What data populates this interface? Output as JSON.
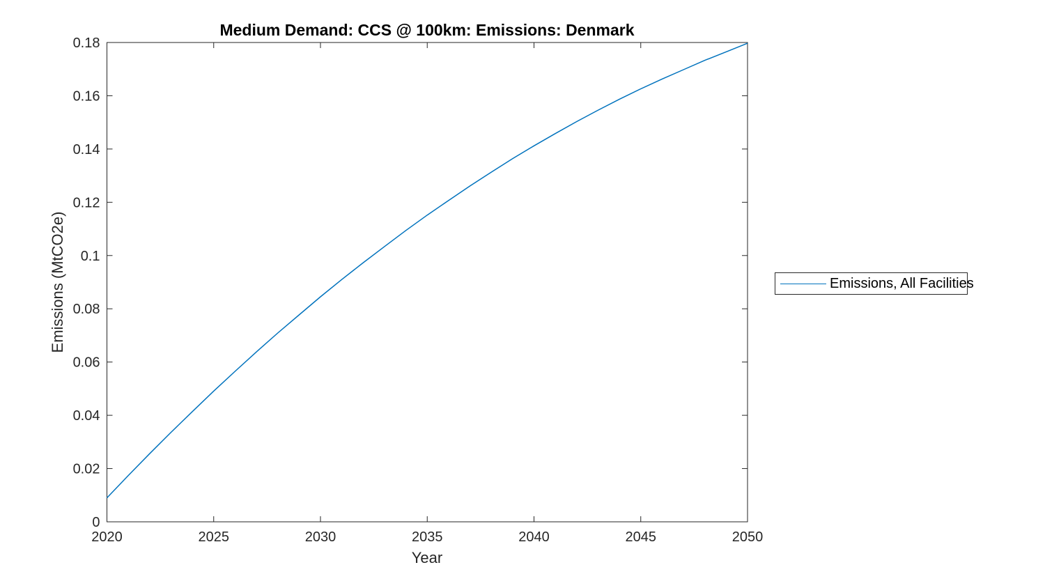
{
  "figure": {
    "title": "Medium Demand: CCS @ 100km: Emissions: Denmark",
    "xlabel": "Year",
    "ylabel": "Emissions (MtCO2e)"
  },
  "legend": {
    "entries": [
      {
        "label": "Emissions, All Facilities",
        "color": "#0072BD"
      }
    ]
  },
  "colors": {
    "line": "#0072BD",
    "axis": "#262626",
    "title": "#000000",
    "background": "#ffffff"
  },
  "chart_data": {
    "type": "line",
    "title": "Medium Demand: CCS @ 100km: Emissions: Denmark",
    "xlabel": "Year",
    "ylabel": "Emissions (MtCO2e)",
    "xlim": [
      2020,
      2050
    ],
    "ylim": [
      0,
      0.18
    ],
    "x_tick_labels": [
      "2020",
      "2025",
      "2030",
      "2035",
      "2040",
      "2045",
      "2050"
    ],
    "x_tick_values": [
      2020,
      2025,
      2030,
      2035,
      2040,
      2045,
      2050
    ],
    "y_tick_labels": [
      "0",
      "0.02",
      "0.04",
      "0.06",
      "0.08",
      "0.1",
      "0.12",
      "0.14",
      "0.16",
      "0.18"
    ],
    "y_tick_values": [
      0,
      0.02,
      0.04,
      0.06,
      0.08,
      0.1,
      0.12,
      0.14,
      0.16,
      0.18
    ],
    "grid": false,
    "box": true,
    "legend_position": "outside-right",
    "series": [
      {
        "name": "Emissions, All Facilities",
        "color": "#0072BD",
        "x": [
          2020,
          2021,
          2022,
          2023,
          2024,
          2025,
          2026,
          2027,
          2028,
          2029,
          2030,
          2031,
          2032,
          2033,
          2034,
          2035,
          2036,
          2037,
          2038,
          2039,
          2040,
          2041,
          2042,
          2043,
          2044,
          2045,
          2046,
          2047,
          2048,
          2049,
          2050
        ],
        "y": [
          0.009,
          0.0174,
          0.0256,
          0.0336,
          0.0414,
          0.0491,
          0.0565,
          0.0638,
          0.0709,
          0.0777,
          0.0845,
          0.091,
          0.0973,
          0.1034,
          0.1094,
          0.1152,
          0.1207,
          0.1261,
          0.1313,
          0.1364,
          0.1412,
          0.1458,
          0.1503,
          0.1546,
          0.1587,
          0.1626,
          0.1663,
          0.1698,
          0.1733,
          0.1765,
          0.1797
        ]
      }
    ]
  }
}
